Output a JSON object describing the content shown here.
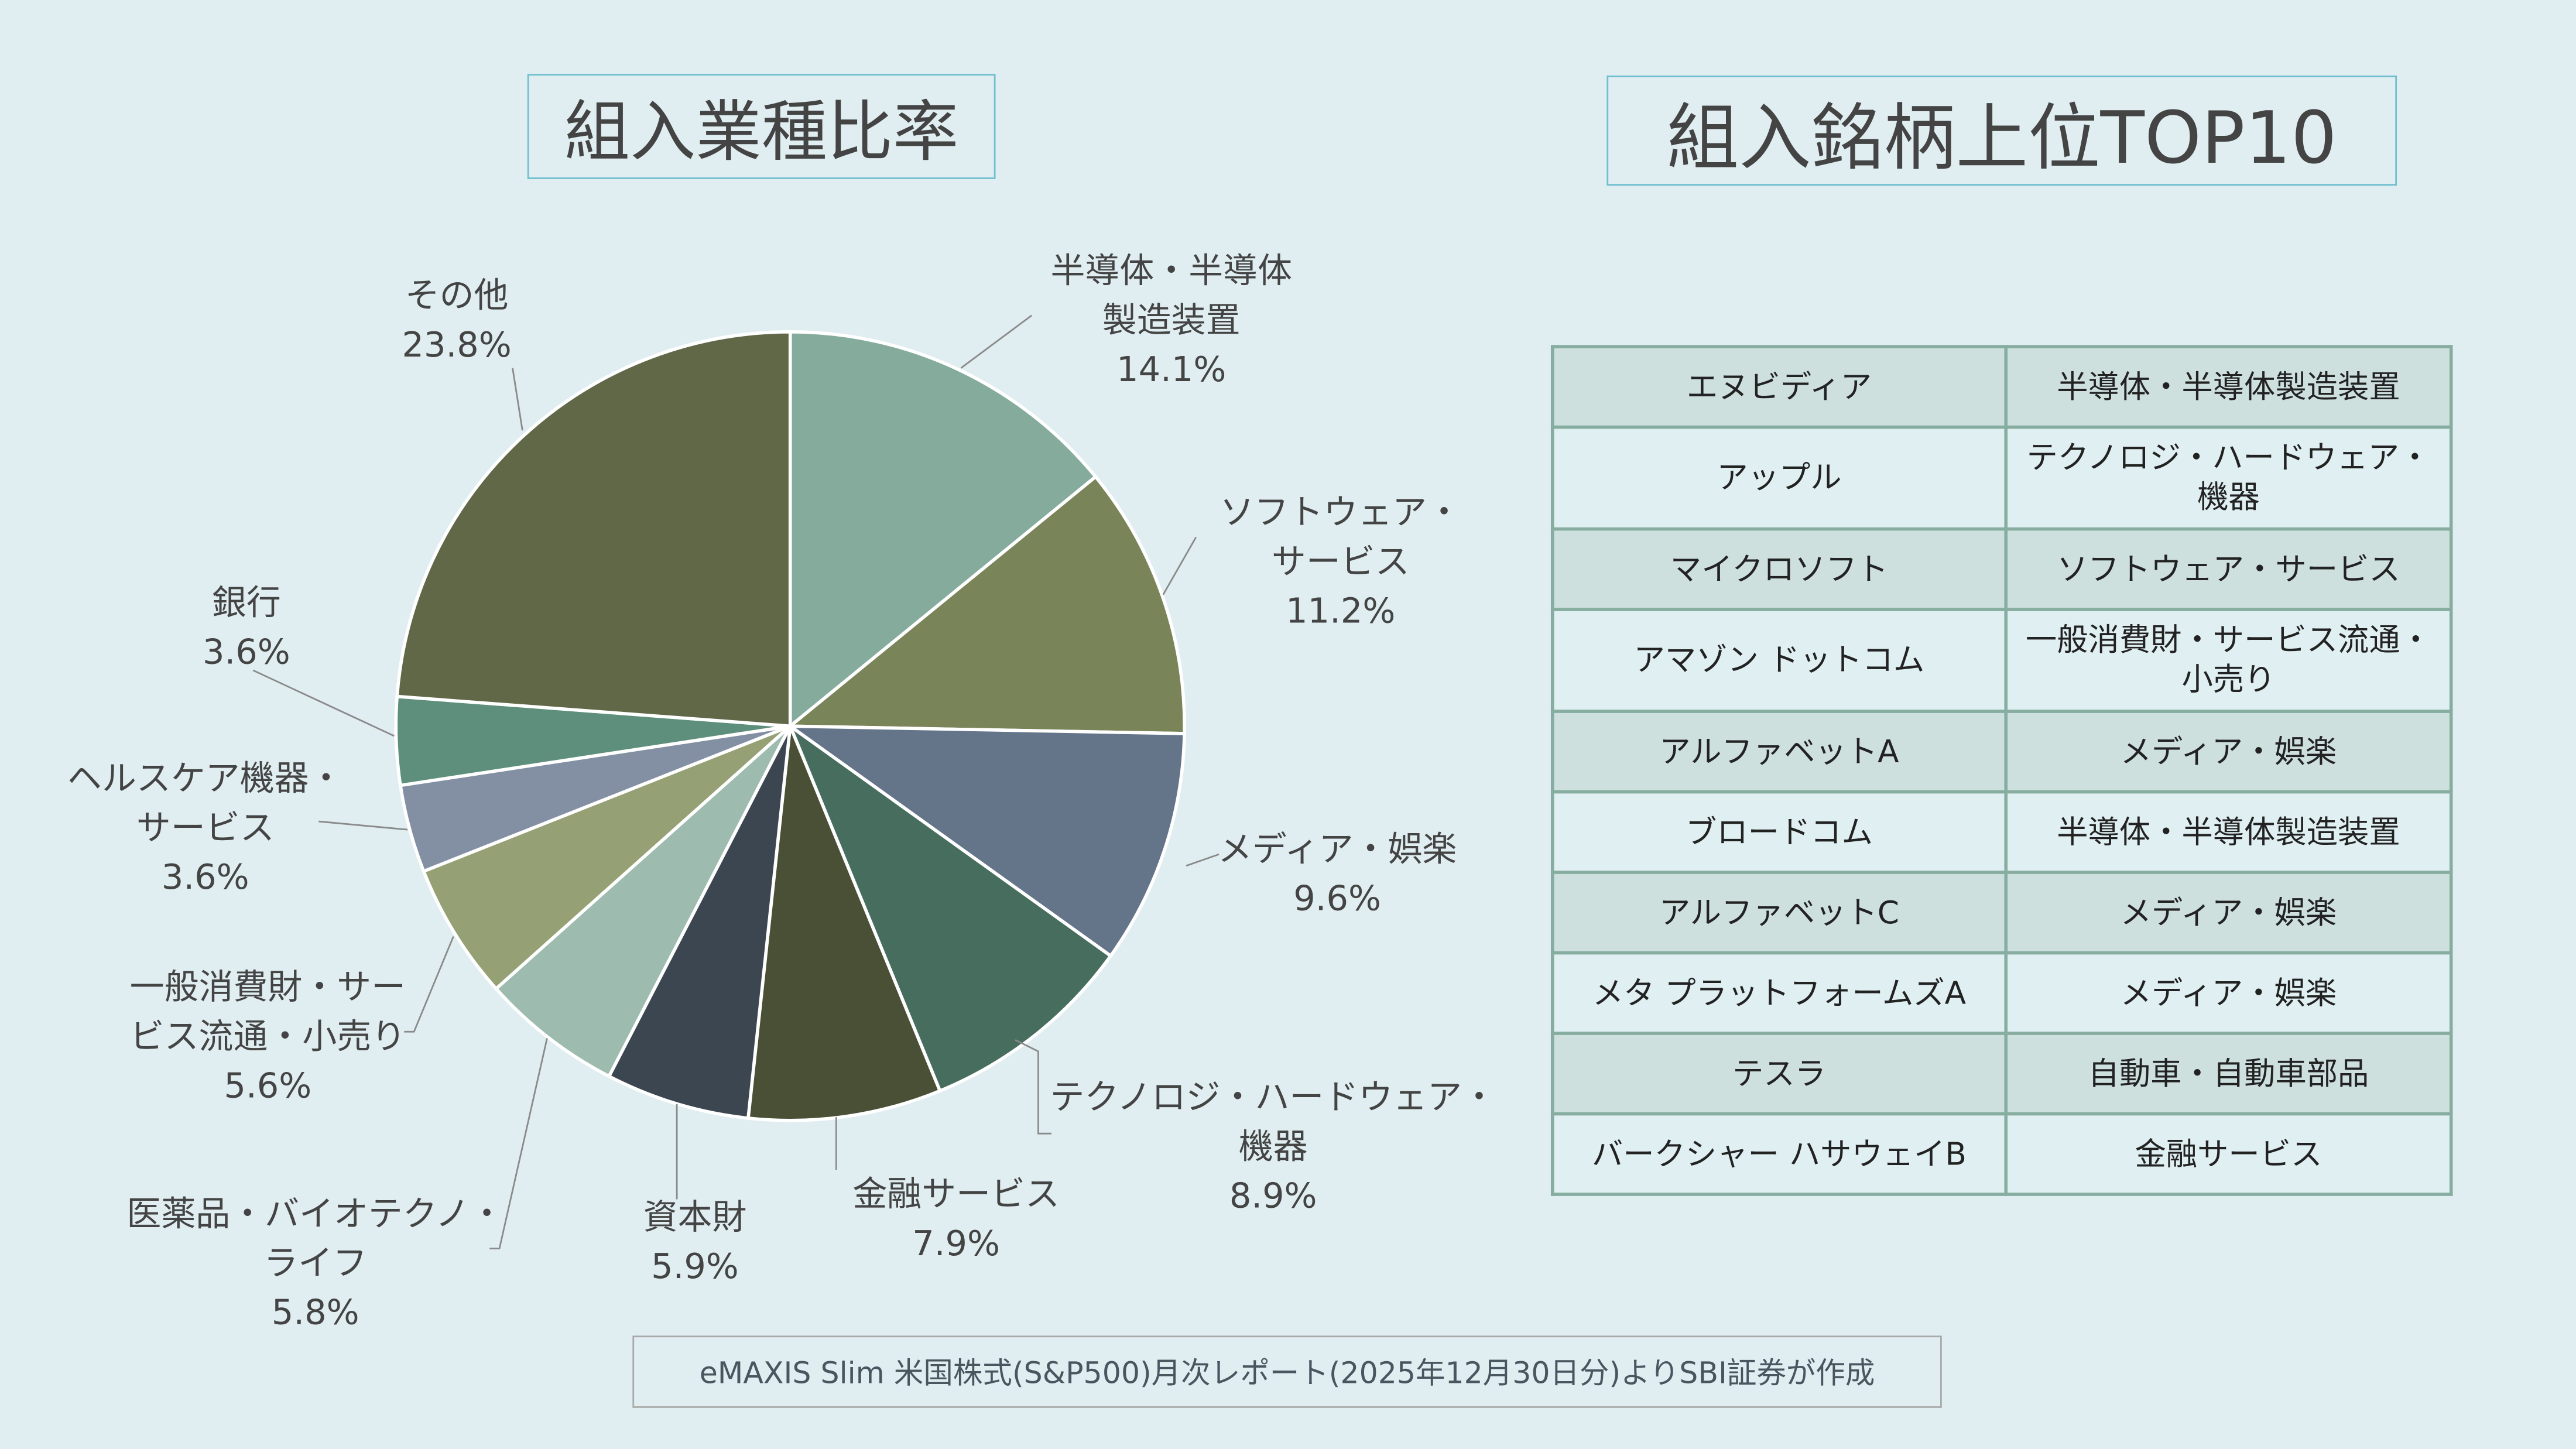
{
  "titles": {
    "sector": "組入業種比率",
    "top10": "組入銘柄上位TOP10"
  },
  "chart_data": {
    "type": "pie",
    "title": "組入業種比率",
    "start": "top",
    "direction": "clockwise",
    "slices": [
      {
        "label": [
          "半導体・半導体",
          "製造装置"
        ],
        "value": 14.1,
        "display": "14.1%",
        "color": "#84ab9c"
      },
      {
        "label": [
          "ソフトウェア・",
          "サービス"
        ],
        "value": 11.2,
        "display": "11.2%",
        "color": "#7a8459"
      },
      {
        "label": [
          "メディア・娯楽"
        ],
        "value": 9.6,
        "display": "9.6%",
        "color": "#647489"
      },
      {
        "label": [
          "テクノロジ・ハードウェア・",
          "機器"
        ],
        "value": 8.9,
        "display": "8.9%",
        "color": "#476d5e"
      },
      {
        "label": [
          "金融サービス"
        ],
        "value": 7.9,
        "display": "7.9%",
        "color": "#4a5035"
      },
      {
        "label": [
          "資本財"
        ],
        "value": 5.9,
        "display": "5.9%",
        "color": "#3b4651"
      },
      {
        "label": [
          "医薬品・バイオテクノ・",
          "ライフ"
        ],
        "value": 5.8,
        "display": "5.8%",
        "color": "#9dbbae"
      },
      {
        "label": [
          "一般消費財・サー",
          "ビス流通・小売り"
        ],
        "value": 5.6,
        "display": "5.6%",
        "color": "#95a075"
      },
      {
        "label": [
          "ヘルスケア機器・",
          "サービス"
        ],
        "value": 3.6,
        "display": "3.6%",
        "color": "#8390a3"
      },
      {
        "label": [
          "銀行"
        ],
        "value": 3.6,
        "display": "3.6%",
        "color": "#5e8f7c"
      },
      {
        "label": [
          "その他"
        ],
        "value": 23.8,
        "display": "23.8%",
        "color": "#616848"
      }
    ]
  },
  "top10": [
    {
      "name": "エヌビディア",
      "sector": [
        "半導体・半導体製造装置"
      ]
    },
    {
      "name": "アップル",
      "sector": [
        "テクノロジ・ハードウェア・",
        "機器"
      ]
    },
    {
      "name": "マイクロソフト",
      "sector": [
        "ソフトウェア・サービス"
      ]
    },
    {
      "name": "アマゾン ドットコム",
      "sector": [
        "一般消費財・サービス流通・",
        "小売り"
      ]
    },
    {
      "name": "アルファベットA",
      "sector": [
        "メディア・娯楽"
      ]
    },
    {
      "name": "ブロードコム",
      "sector": [
        "半導体・半導体製造装置"
      ]
    },
    {
      "name": "アルファベットC",
      "sector": [
        "メディア・娯楽"
      ]
    },
    {
      "name": "メタ プラットフォームズA",
      "sector": [
        "メディア・娯楽"
      ]
    },
    {
      "name": "テスラ",
      "sector": [
        "自動車・自動車部品"
      ]
    },
    {
      "name": "バークシャー ハサウェイB",
      "sector": [
        "金融サービス"
      ]
    }
  ],
  "footer": "eMAXIS Slim 米国株式(S&P500)月次レポート(2025年12月30日分)よりSBI証券が作成"
}
